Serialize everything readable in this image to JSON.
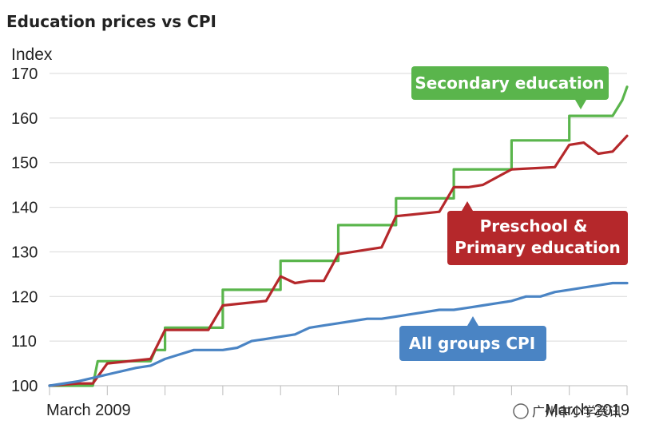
{
  "chart_data": {
    "type": "line",
    "title": "Education prices vs CPI",
    "ylabel": "Index",
    "xlabel": "",
    "ylim": [
      100,
      170
    ],
    "y_ticks": [
      100,
      110,
      120,
      130,
      140,
      150,
      160,
      170
    ],
    "x_tick_labels": [
      "March 2009",
      "March 2019"
    ],
    "x": [
      0,
      6,
      12,
      18,
      24,
      30,
      36,
      42,
      48,
      54,
      60,
      66,
      72,
      78,
      84,
      90,
      96,
      102,
      108,
      114,
      120
    ],
    "grid": "horizontal",
    "colors": {
      "secondary": "#5ab54c",
      "primary": "#b5282b",
      "cpi": "#4a84c4"
    },
    "series": [
      {
        "name": "Secondary education",
        "color": "#5ab54c",
        "x": [
          0,
          9,
          10,
          21,
          22,
          24,
          24,
          33,
          34,
          36,
          36,
          45,
          46,
          48,
          48,
          57,
          58,
          60,
          60,
          69,
          70,
          72,
          72,
          81,
          82,
          84,
          84,
          93,
          94,
          96,
          96,
          105,
          106,
          108,
          108,
          117,
          119,
          120
        ],
        "values": [
          100,
          100,
          105.5,
          105.5,
          108,
          108,
          113,
          113,
          113,
          113,
          121.5,
          121.5,
          121.5,
          121.5,
          128,
          128,
          128,
          128,
          136,
          136,
          136,
          136,
          142,
          142,
          142,
          142,
          148.5,
          148.5,
          148.5,
          148.5,
          155,
          155,
          155,
          155,
          160.5,
          160.5,
          164,
          167
        ]
      },
      {
        "name": "Preschool & Primary education",
        "color": "#b5282b",
        "x": [
          0,
          6,
          9,
          12,
          21,
          24,
          33,
          36,
          45,
          48,
          51,
          54,
          57,
          60,
          63,
          66,
          69,
          72,
          81,
          84,
          87,
          90,
          96,
          105,
          108,
          111,
          114,
          117,
          120
        ],
        "values": [
          100,
          100.5,
          100.5,
          105,
          106,
          112.5,
          112.5,
          118,
          119,
          124.5,
          123,
          123.5,
          123.5,
          129.5,
          130,
          130.5,
          131,
          138,
          139,
          144.5,
          144.5,
          145,
          148.5,
          149,
          154,
          154.5,
          152,
          152.5,
          156
        ]
      },
      {
        "name": "All groups CPI",
        "color": "#4a84c4",
        "x": [
          0,
          6,
          12,
          18,
          21,
          24,
          27,
          30,
          33,
          36,
          39,
          42,
          45,
          48,
          51,
          54,
          57,
          60,
          63,
          66,
          69,
          72,
          75,
          78,
          81,
          84,
          87,
          90,
          93,
          96,
          99,
          102,
          105,
          108,
          111,
          114,
          117,
          120
        ],
        "values": [
          100,
          101,
          102.5,
          104,
          104.5,
          106,
          107,
          108,
          108,
          108,
          108.5,
          110,
          110.5,
          111,
          111.5,
          113,
          113.5,
          114,
          114.5,
          115,
          115,
          115.5,
          116,
          116.5,
          117,
          117,
          117.5,
          118,
          118.5,
          119,
          120,
          120,
          121,
          121.5,
          122,
          122.5,
          123,
          123
        ]
      }
    ],
    "callouts": [
      {
        "label": "Secondary education",
        "color": "#5ab54c"
      },
      {
        "label_lines": [
          "Preschool &",
          "Primary education"
        ],
        "color": "#b5282b"
      },
      {
        "label": "All groups CPI",
        "color": "#4a84c4"
      }
    ]
  },
  "watermark": {
    "text": "广州中小学资讯"
  }
}
